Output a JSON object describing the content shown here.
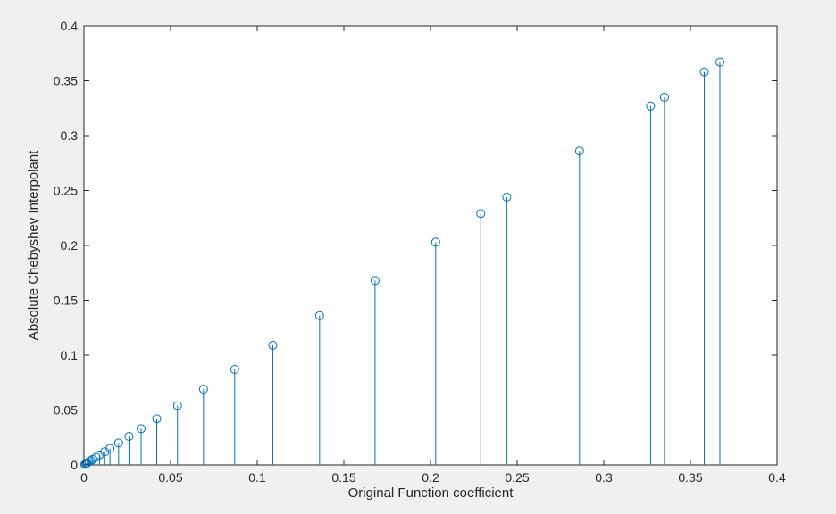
{
  "chart_data": {
    "type": "stem",
    "xlabel": "Original Function coefficient",
    "ylabel": "Absolute Chebyshev Interpolant",
    "xlim": [
      0,
      0.4
    ],
    "ylim": [
      0,
      0.4
    ],
    "xticks": [
      0,
      0.05,
      0.1,
      0.15,
      0.2,
      0.25,
      0.3,
      0.35,
      0.4
    ],
    "xtick_labels": [
      "0",
      "0.05",
      "0.1",
      "0.15",
      "0.2",
      "0.25",
      "0.3",
      "0.35",
      "0.4"
    ],
    "yticks": [
      0,
      0.05,
      0.1,
      0.15,
      0.2,
      0.25,
      0.3,
      0.35,
      0.4
    ],
    "ytick_labels": [
      "0",
      "0.05",
      "0.1",
      "0.15",
      "0.2",
      "0.25",
      "0.3",
      "0.35",
      "0.4"
    ],
    "grid": false,
    "marker": "circle-open",
    "color": "#0072bd",
    "x": [
      0.0005,
      0.001,
      0.0015,
      0.002,
      0.003,
      0.004,
      0.005,
      0.007,
      0.009,
      0.012,
      0.015,
      0.02,
      0.026,
      0.033,
      0.042,
      0.054,
      0.069,
      0.087,
      0.109,
      0.136,
      0.168,
      0.203,
      0.229,
      0.244,
      0.286,
      0.327,
      0.335,
      0.358,
      0.367
    ],
    "y": [
      0.0005,
      0.001,
      0.0015,
      0.002,
      0.003,
      0.004,
      0.005,
      0.007,
      0.009,
      0.012,
      0.015,
      0.02,
      0.026,
      0.033,
      0.042,
      0.054,
      0.069,
      0.087,
      0.109,
      0.136,
      0.168,
      0.203,
      0.229,
      0.244,
      0.286,
      0.327,
      0.335,
      0.358,
      0.367
    ]
  }
}
